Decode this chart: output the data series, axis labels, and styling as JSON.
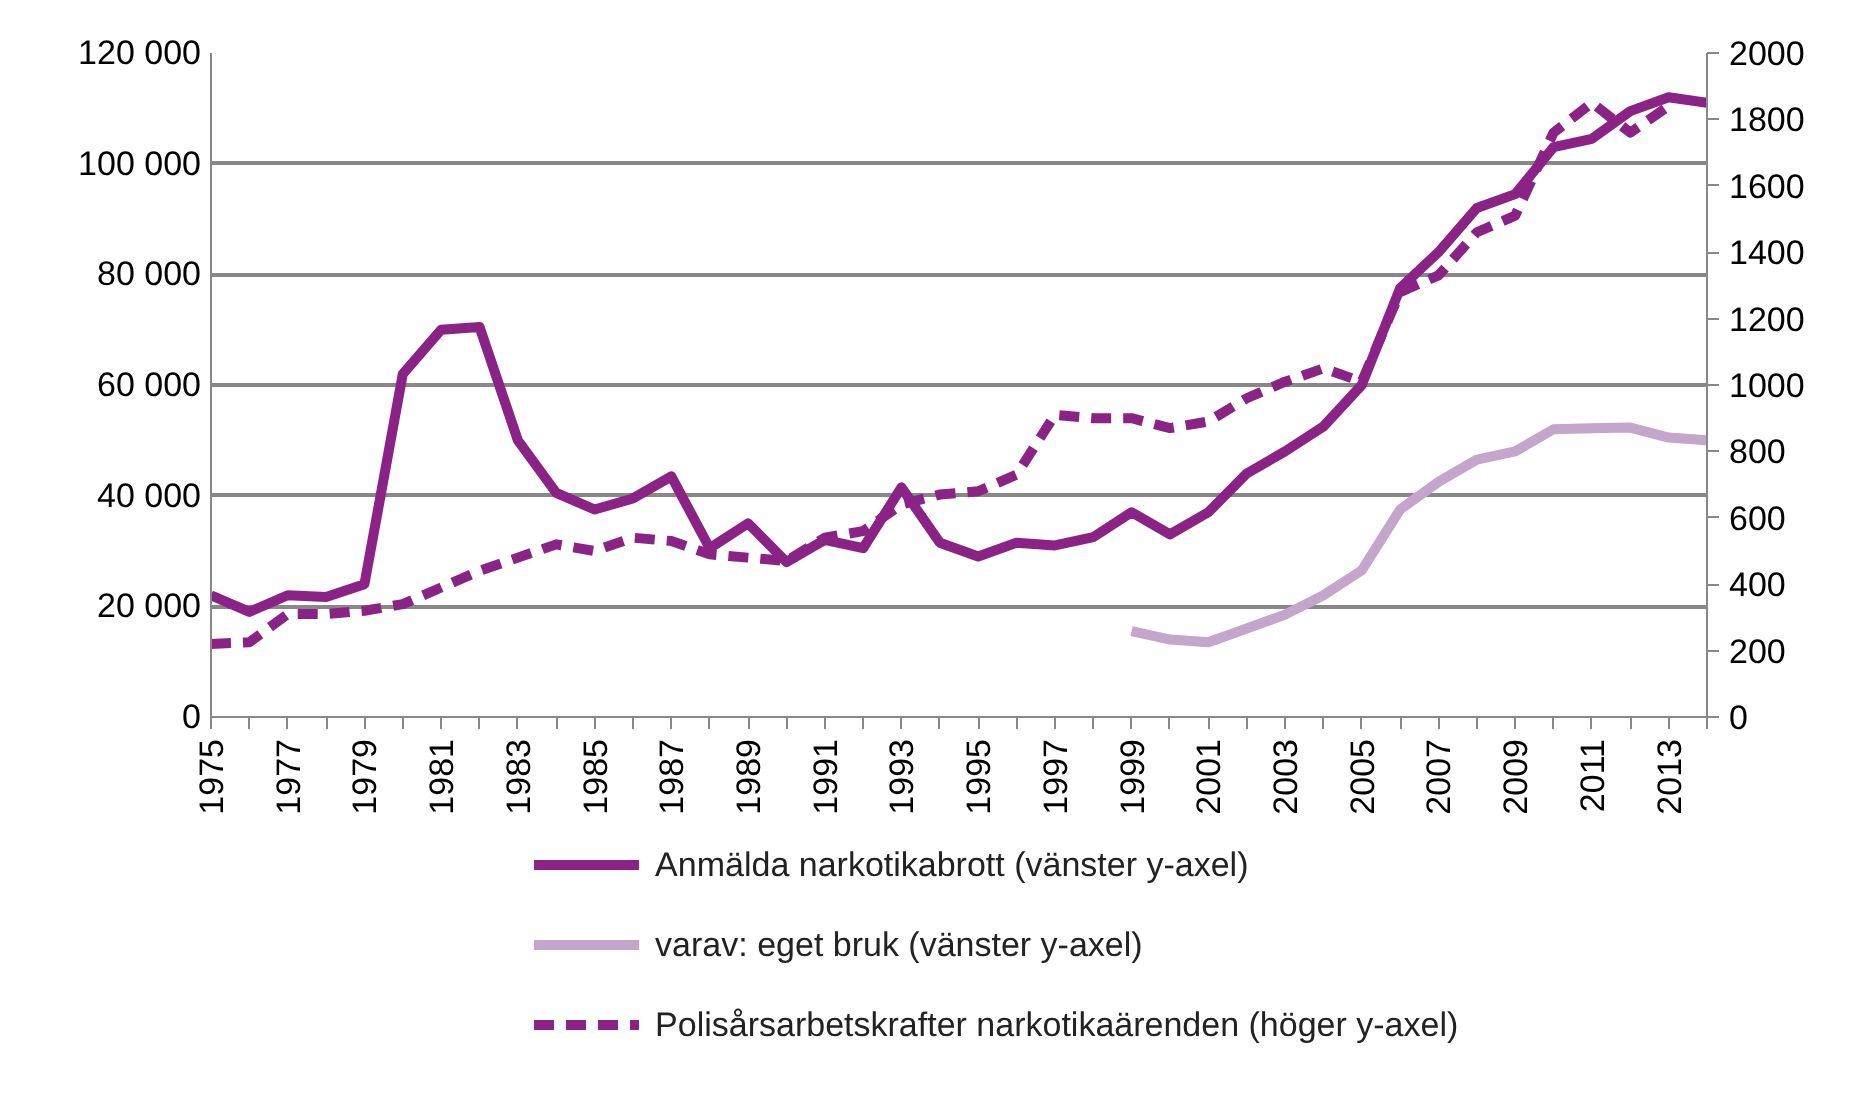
{
  "chart_data": {
    "type": "line",
    "x": [
      1975,
      1976,
      1977,
      1978,
      1979,
      1980,
      1981,
      1982,
      1983,
      1984,
      1985,
      1986,
      1987,
      1988,
      1989,
      1990,
      1991,
      1992,
      1993,
      1994,
      1995,
      1996,
      1997,
      1998,
      1999,
      2000,
      2001,
      2002,
      2003,
      2004,
      2005,
      2006,
      2007,
      2008,
      2009,
      2010,
      2011,
      2012,
      2013,
      2014
    ],
    "series": [
      {
        "name": "Anmälda narkotikabrott (vänster y-axel)",
        "color": "#8b2387",
        "line_style": "solid",
        "values": [
          22000,
          19000,
          22000,
          21700,
          24000,
          62000,
          70000,
          70500,
          50000,
          40500,
          37500,
          39500,
          43500,
          30500,
          35000,
          28000,
          32000,
          30500,
          41500,
          31500,
          29000,
          31500,
          31000,
          32500,
          37000,
          33000,
          37000,
          44000,
          48000,
          52500,
          60000,
          77500,
          84000,
          92000,
          94500,
          103000,
          104500,
          109500,
          112000,
          111000
        ]
      },
      {
        "name": "varav: eget bruk (vänster y-axel)",
        "color": "#c4a5cc",
        "line_style": "solid",
        "values": [
          null,
          null,
          null,
          null,
          null,
          null,
          null,
          null,
          null,
          null,
          null,
          null,
          null,
          null,
          null,
          null,
          null,
          null,
          null,
          null,
          null,
          null,
          null,
          null,
          15500,
          14000,
          13500,
          16000,
          18500,
          22000,
          26500,
          37500,
          42500,
          46500,
          48000,
          52000,
          52200,
          52300,
          50500,
          50000
        ]
      },
      {
        "name": "Polisårsarbetskrafter narkotikaärenden (höger y-axel)",
        "color": "#8b2387",
        "line_style": "dashed",
        "axis": "y2",
        "values": [
          220,
          225,
          310,
          310,
          320,
          340,
          390,
          440,
          480,
          520,
          500,
          540,
          530,
          490,
          480,
          470,
          540,
          560,
          640,
          670,
          680,
          730,
          910,
          900,
          900,
          870,
          890,
          960,
          1010,
          1050,
          1010,
          1280,
          1330,
          1460,
          1510,
          1760,
          1850,
          1760,
          1840,
          null
        ]
      }
    ],
    "xlim": [
      1975,
      2014
    ],
    "xticks": [
      1975,
      {
        "value": 1976,
        "label": null
      },
      1977,
      {
        "value": 1978,
        "label": null
      },
      1979,
      {
        "value": 1980,
        "label": null
      },
      1981,
      {
        "value": 1982,
        "label": null
      },
      1983,
      {
        "value": 1984,
        "label": null
      },
      1985,
      {
        "value": 1986,
        "label": null
      },
      1987,
      {
        "value": 1988,
        "label": null
      },
      1989,
      {
        "value": 1990,
        "label": null
      },
      1991,
      {
        "value": 1992,
        "label": null
      },
      1993,
      {
        "value": 1994,
        "label": null
      },
      1995,
      {
        "value": 1996,
        "label": null
      },
      1997,
      {
        "value": 1998,
        "label": null
      },
      1999,
      {
        "value": 2000,
        "label": null
      },
      2001,
      {
        "value": 2002,
        "label": null
      },
      2003,
      {
        "value": 2004,
        "label": null
      },
      2005,
      {
        "value": 2006,
        "label": null
      },
      2007,
      {
        "value": 2008,
        "label": null
      },
      2009,
      {
        "value": 2010,
        "label": null
      },
      2011,
      {
        "value": 2012,
        "label": null
      },
      2013,
      {
        "value": 2014,
        "label": null
      }
    ],
    "ylim": [
      0,
      120000
    ],
    "yticks": [
      {
        "value": 0,
        "label": "0"
      },
      {
        "value": 20000,
        "label": "20 000"
      },
      {
        "value": 40000,
        "label": "40 000"
      },
      {
        "value": 60000,
        "label": "60 000"
      },
      {
        "value": 80000,
        "label": "80 000"
      },
      {
        "value": 100000,
        "label": "100 000"
      },
      {
        "value": 120000,
        "label": "120 000"
      }
    ],
    "y2lim": [
      0,
      2000
    ],
    "y2ticks": [
      0,
      200,
      400,
      600,
      800,
      1000,
      1200,
      1400,
      1600,
      1800,
      2000
    ],
    "grid": "y",
    "legend": "bottom"
  }
}
